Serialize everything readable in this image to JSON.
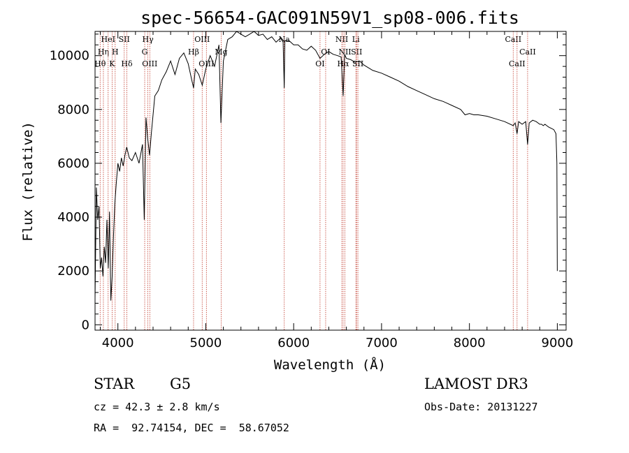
{
  "chart_data": {
    "type": "line",
    "title": "spec-56654-GAC091N59V1_sp08-006.fits",
    "xlabel": "Wavelength (Å)",
    "ylabel": "Flux (relative)",
    "xlim": [
      3740,
      9100
    ],
    "ylim": [
      -200,
      10900
    ],
    "xticks": [
      4000,
      5000,
      6000,
      7000,
      8000,
      9000
    ],
    "yticks": [
      0,
      2000,
      4000,
      6000,
      8000,
      10000
    ],
    "colors": {
      "spectrum": "#000000",
      "lines": "#c0392b",
      "axes": "#000000"
    },
    "series": [
      {
        "name": "spectrum",
        "x": [
          3740,
          3755,
          3770,
          3785,
          3800,
          3815,
          3830,
          3845,
          3860,
          3875,
          3890,
          3905,
          3920,
          3935,
          3950,
          3965,
          3980,
          4000,
          4020,
          4040,
          4060,
          4080,
          4100,
          4130,
          4160,
          4200,
          4240,
          4280,
          4300,
          4320,
          4340,
          4360,
          4380,
          4420,
          4460,
          4500,
          4550,
          4600,
          4650,
          4700,
          4750,
          4800,
          4840,
          4861,
          4880,
          4920,
          4960,
          5000,
          5050,
          5100,
          5150,
          5172,
          5200,
          5250,
          5300,
          5350,
          5400,
          5450,
          5500,
          5550,
          5600,
          5650,
          5700,
          5750,
          5800,
          5850,
          5880,
          5893,
          5900,
          5950,
          6000,
          6050,
          6100,
          6150,
          6200,
          6250,
          6300,
          6350,
          6400,
          6450,
          6500,
          6540,
          6563,
          6580,
          6600,
          6650,
          6700,
          6750,
          6800,
          6900,
          7000,
          7100,
          7200,
          7300,
          7400,
          7500,
          7600,
          7700,
          7800,
          7900,
          7950,
          8000,
          8050,
          8100,
          8200,
          8300,
          8400,
          8498,
          8520,
          8542,
          8560,
          8600,
          8640,
          8662,
          8680,
          8720,
          8760,
          8800,
          8820,
          8840,
          8860,
          8880,
          8900,
          8930,
          8960,
          8985,
          8995,
          9000
        ],
        "values": [
          1000,
          5100,
          3900,
          4400,
          2100,
          2500,
          1800,
          2900,
          2300,
          3900,
          2100,
          4200,
          900,
          1800,
          3300,
          4500,
          5200,
          6000,
          5700,
          6200,
          5900,
          6300,
          6600,
          6200,
          6100,
          6400,
          6000,
          6700,
          3900,
          7700,
          6900,
          6300,
          7100,
          8500,
          8700,
          9100,
          9400,
          9800,
          9300,
          9900,
          10100,
          9700,
          9100,
          8800,
          9500,
          9300,
          8900,
          9500,
          10000,
          9600,
          10400,
          7500,
          9800,
          10600,
          10700,
          10900,
          10800,
          10700,
          10800,
          10900,
          10750,
          10800,
          10600,
          10700,
          10500,
          10650,
          10500,
          8800,
          10550,
          10550,
          10400,
          10400,
          10250,
          10200,
          10350,
          10200,
          9900,
          10050,
          10150,
          10050,
          10000,
          9950,
          8500,
          10050,
          9900,
          9850,
          9750,
          9800,
          9650,
          9450,
          9350,
          9200,
          9050,
          8850,
          8700,
          8550,
          8400,
          8300,
          8150,
          8000,
          7800,
          7850,
          7800,
          7800,
          7750,
          7650,
          7550,
          7400,
          7500,
          7100,
          7550,
          7450,
          7550,
          6700,
          7500,
          7600,
          7550,
          7450,
          7450,
          7400,
          7450,
          7400,
          7350,
          7300,
          7250,
          7100,
          6000,
          2000
        ]
      }
    ],
    "line_markers": [
      {
        "label": "Hθ",
        "wavelength": 3798,
        "row": 3
      },
      {
        "label": "Hη",
        "wavelength": 3835,
        "row": 2
      },
      {
        "label": "HeI",
        "wavelength": 3889,
        "row": 1
      },
      {
        "label": "K",
        "wavelength": 3934,
        "row": 3
      },
      {
        "label": "H",
        "wavelength": 3969,
        "row": 2
      },
      {
        "label": "SII",
        "wavelength": 4072,
        "row": 1
      },
      {
        "label": "Hδ",
        "wavelength": 4102,
        "row": 3
      },
      {
        "label": "Hγ",
        "wavelength": 4341,
        "row": 1
      },
      {
        "label": "G",
        "wavelength": 4305,
        "row": 2
      },
      {
        "label": "OIII",
        "wavelength": 4363,
        "row": 3
      },
      {
        "label": "Hβ",
        "wavelength": 4861,
        "row": 2
      },
      {
        "label": "OIII",
        "wavelength": 4959,
        "row": 1
      },
      {
        "label": "OIII",
        "wavelength": 5007,
        "row": 3
      },
      {
        "label": "Mg",
        "wavelength": 5175,
        "row": 2
      },
      {
        "label": "Na",
        "wavelength": 5893,
        "row": 1
      },
      {
        "label": "OI",
        "wavelength": 6300,
        "row": 3
      },
      {
        "label": "OI",
        "wavelength": 6364,
        "row": 2
      },
      {
        "label": "NII",
        "wavelength": 6548,
        "row": 1
      },
      {
        "label": "Hα",
        "wavelength": 6563,
        "row": 3
      },
      {
        "label": "NII",
        "wavelength": 6583,
        "row": 2
      },
      {
        "label": "Li",
        "wavelength": 6708,
        "row": 1
      },
      {
        "label": "SII",
        "wavelength": 6716,
        "row": 2
      },
      {
        "label": "SII",
        "wavelength": 6731,
        "row": 3
      },
      {
        "label": "CaII",
        "wavelength": 8498,
        "row": 1
      },
      {
        "label": "CaII",
        "wavelength": 8542,
        "row": 3
      },
      {
        "label": "CaII",
        "wavelength": 8662,
        "row": 2
      }
    ]
  },
  "info": {
    "object_class": "STAR",
    "subclass": "G5",
    "survey": "LAMOST DR3",
    "redshift": "cz = 42.3 ± 2.8 km/s",
    "obs_date": "Obs-Date: 20131227",
    "coords": "RA =  92.74154, DEC =  58.67052"
  }
}
